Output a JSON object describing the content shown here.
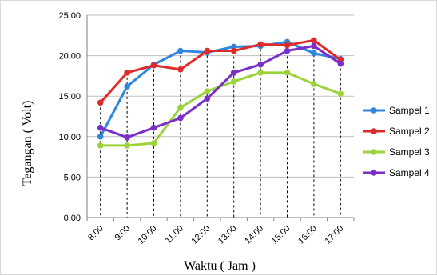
{
  "chart_data": {
    "type": "line",
    "title": "",
    "xlabel": "Waktu ( Jam )",
    "ylabel": "Tegangan ( Volt)",
    "categories": [
      "8:00",
      "9:00",
      "10:00",
      "11:00",
      "12:00",
      "13:00",
      "14:00",
      "15:00",
      "16:00",
      "17:00"
    ],
    "ylim": [
      0,
      25
    ],
    "yticks": [
      "0,00",
      "5,00",
      "10,00",
      "15,00",
      "20,00",
      "25,00"
    ],
    "grid": "horizontal",
    "drop_lines": true,
    "legend_position": "right",
    "series": [
      {
        "name": "Sampel 1",
        "color": "#2e86de",
        "values": [
          10.0,
          16.2,
          18.9,
          20.6,
          20.4,
          21.1,
          21.2,
          21.7,
          20.3,
          19.6
        ]
      },
      {
        "name": "Sampel 2",
        "color": "#e02a2a",
        "values": [
          14.2,
          17.9,
          18.8,
          18.3,
          20.6,
          20.6,
          21.4,
          21.3,
          21.9,
          19.5
        ]
      },
      {
        "name": "Sampel 3",
        "color": "#9bd33a",
        "values": [
          8.9,
          8.9,
          9.2,
          13.6,
          15.6,
          16.8,
          17.9,
          17.9,
          16.5,
          15.3
        ]
      },
      {
        "name": "Sampel 4",
        "color": "#7a2fc8",
        "values": [
          11.1,
          9.9,
          11.1,
          12.3,
          14.7,
          17.9,
          18.9,
          20.6,
          21.2,
          19.0
        ]
      }
    ]
  }
}
